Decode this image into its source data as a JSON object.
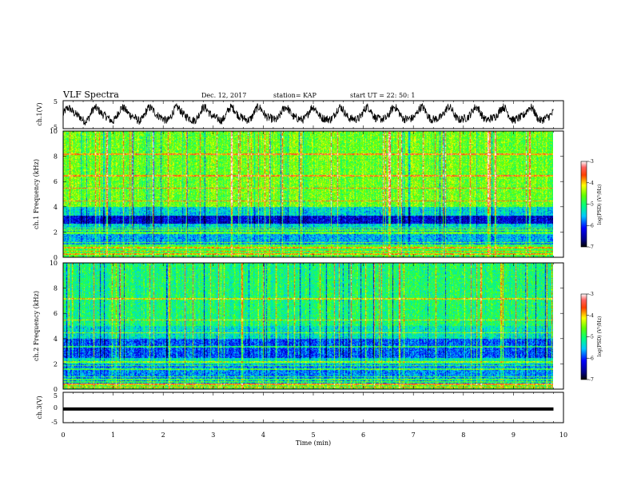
{
  "header": {
    "title": "VLF Spectra",
    "date": "Dec. 12, 2017",
    "station": "station= KAP",
    "start": "start  UT =   22: 50: 1"
  },
  "chart_data": [
    {
      "type": "line",
      "name": "ch1-waveform",
      "ylabel": "ch.1(V)",
      "xlim": [
        0,
        10
      ],
      "ylim": [
        -5,
        5
      ],
      "y_ticks": [
        "5",
        "-5"
      ],
      "x_data_end": 9.8,
      "shape": "noisy oscillation, amplitude roughly ±3 V, about 18 slow cycles over the record"
    },
    {
      "type": "heatmap",
      "name": "ch1-spectrogram",
      "ylabel": "ch.1 Frequency  (kHz)",
      "xlim": [
        0,
        10
      ],
      "ylim": [
        0,
        10
      ],
      "y_ticks": [
        "0",
        "2",
        "4",
        "6",
        "8",
        "10"
      ],
      "colorbar": {
        "label": "log(PSD) (V²/Hz)",
        "range": [
          -7,
          -3
        ],
        "ticks": [
          "-3",
          "-4",
          "-5",
          "-6",
          "-7"
        ]
      },
      "typical_level": {
        "above_4kHz": -4.6,
        "band_2.7_3.3kHz": -6.3,
        "band_1_2.4kHz": -5.6,
        "below_1kHz": -4.8
      },
      "tonal_lines_kHz": [
        0.3,
        0.5,
        0.8,
        1.0,
        1.2,
        1.9,
        2.0,
        2.2,
        2.35,
        4.5,
        5.5,
        6.5,
        8.2
      ]
    },
    {
      "type": "heatmap",
      "name": "ch2-spectrogram",
      "ylabel": "ch.2 Frequency  (kHz)",
      "xlim": [
        0,
        10
      ],
      "ylim": [
        0,
        10
      ],
      "y_ticks": [
        "0",
        "2",
        "4",
        "6",
        "8",
        "10"
      ],
      "colorbar": {
        "label": "log(PSD) (V²/Hz)",
        "range": [
          -7,
          -3
        ],
        "ticks": [
          "-3",
          "-4",
          "-5",
          "-6",
          "-7"
        ]
      },
      "typical_level": {
        "above_5kHz": -5.0,
        "band_2.5_4kHz": -5.9,
        "band_0.5_2kHz": -5.7,
        "below_0.5kHz": -4.7
      },
      "tonal_lines_kHz": [
        0.2,
        0.4,
        0.6,
        0.8,
        1.0,
        1.6,
        1.9,
        2.2,
        3.4,
        4.5,
        5.5,
        7.2
      ]
    },
    {
      "type": "line",
      "name": "ch3-waveform",
      "ylabel": "ch.3(V)",
      "xlim": [
        0,
        10
      ],
      "ylim": [
        -5,
        5
      ],
      "y_ticks": [
        "5",
        "0",
        "-5"
      ],
      "x_data_end": 9.8,
      "level": -0.5,
      "shape": "flat line near -0.5 V"
    }
  ],
  "x_axis": {
    "label": "Time  (min)",
    "ticks": [
      "0",
      "1",
      "2",
      "3",
      "4",
      "5",
      "6",
      "7",
      "8",
      "9",
      "10"
    ]
  }
}
